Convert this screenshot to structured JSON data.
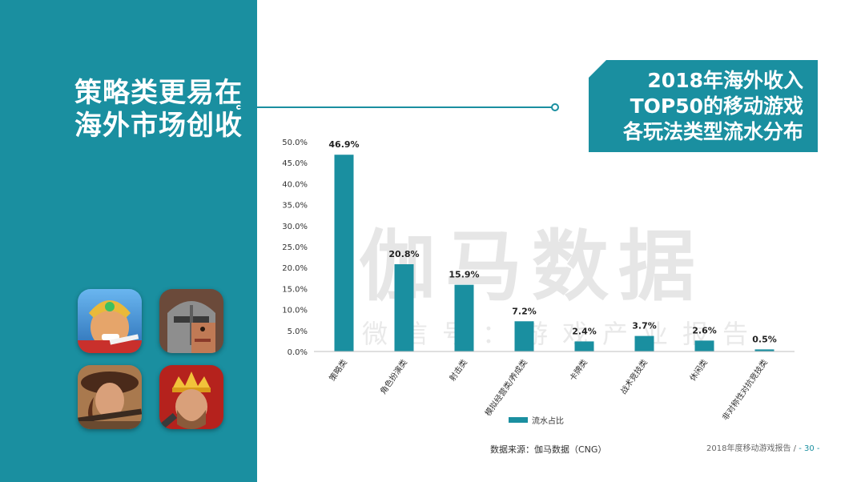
{
  "headline": {
    "line1": "策略类更易在",
    "line2": "海外市场创收"
  },
  "title_box": {
    "line1": "2018年海外收入",
    "line2": "TOP50的移动游戏",
    "line3": "各玩法类型流水分布"
  },
  "watermark": {
    "main": "伽马数据",
    "sub": "微信号：游戏产业报告"
  },
  "game_icons": [
    {
      "name": "game-icon-1"
    },
    {
      "name": "game-icon-2"
    },
    {
      "name": "game-icon-3"
    },
    {
      "name": "game-icon-4"
    }
  ],
  "source": "数据来源：伽马数据（CNG）",
  "footer": {
    "report": "2018年度移动游戏报告 /",
    "page": "- 30 -"
  },
  "colors": {
    "accent": "#1a8fa0",
    "bar": "#1a8fa0"
  },
  "chart_data": {
    "type": "bar",
    "categories": [
      "策略类",
      "角色扮演类",
      "射击类",
      "模拟经营类/养成类",
      "卡牌类",
      "战术竞技类",
      "休闲类",
      "非对称性对抗竞技类"
    ],
    "series": [
      {
        "name": "流水占比",
        "values": [
          46.9,
          20.8,
          15.9,
          7.2,
          2.4,
          3.7,
          2.6,
          0.5
        ]
      }
    ],
    "data_labels": [
      "46.9%",
      "20.8%",
      "15.9%",
      "7.2%",
      "2.4%",
      "3.7%",
      "2.6%",
      "0.5%"
    ],
    "y_ticks": [
      "0.0%",
      "5.0%",
      "10.0%",
      "15.0%",
      "20.0%",
      "25.0%",
      "30.0%",
      "35.0%",
      "40.0%",
      "45.0%",
      "50.0%"
    ],
    "ylim": [
      0,
      50
    ],
    "legend_position": "bottom",
    "grid": false
  }
}
